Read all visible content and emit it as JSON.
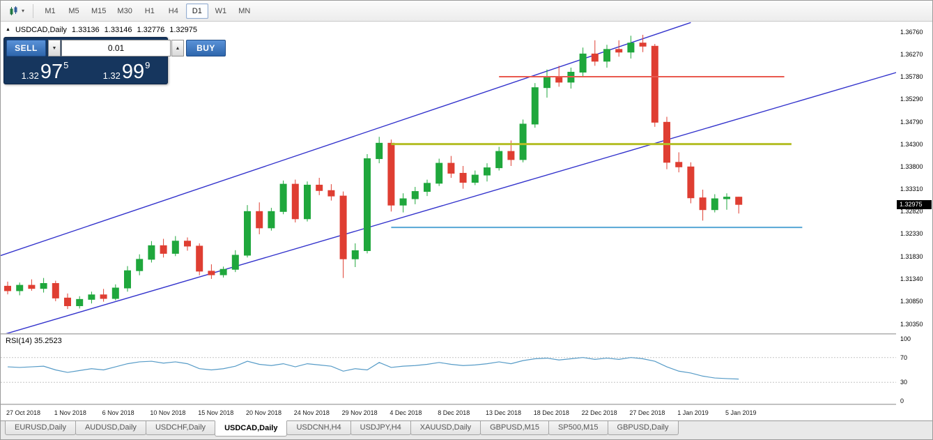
{
  "toolbar": {
    "timeframes": [
      "M1",
      "M5",
      "M15",
      "M30",
      "H1",
      "H4",
      "D1",
      "W1",
      "MN"
    ],
    "active_timeframe": "D1"
  },
  "icons": {
    "caret_down": "▼",
    "caret_up": "▲",
    "dropdown_caret": "▾",
    "symbol_marker": "▲"
  },
  "chart_header": {
    "marker": "▲",
    "symbol": "USDCAD,Daily",
    "open": "1.33136",
    "high": "1.33146",
    "low": "1.32776",
    "close": "1.32975"
  },
  "trade_panel": {
    "sell_label": "SELL",
    "buy_label": "BUY",
    "volume": "0.01",
    "sell_price": {
      "prefix": "1.32",
      "big": "97",
      "sup": "5"
    },
    "buy_price": {
      "prefix": "1.32",
      "big": "99",
      "sup": "9"
    }
  },
  "indicator": {
    "label": "RSI(14) 35.2523",
    "levels": [
      100,
      70,
      30,
      0
    ]
  },
  "price_axis": {
    "labels": [
      "1.36760",
      "1.36270",
      "1.35780",
      "1.35290",
      "1.34790",
      "1.34300",
      "1.33800",
      "1.33310",
      "1.32820",
      "1.32330",
      "1.31830",
      "1.31340",
      "1.30850",
      "1.30350"
    ],
    "current": "1.32975"
  },
  "tabs": [
    {
      "label": "EURUSD,Daily",
      "active": false
    },
    {
      "label": "AUDUSD,Daily",
      "active": false
    },
    {
      "label": "USDCHF,Daily",
      "active": false
    },
    {
      "label": "USDCAD,Daily",
      "active": true
    },
    {
      "label": "USDCNH,H4",
      "active": false
    },
    {
      "label": "USDJPY,H4",
      "active": false
    },
    {
      "label": "XAUUSD,Daily",
      "active": false
    },
    {
      "label": "GBPUSD,M15",
      "active": false
    },
    {
      "label": "SP500,M15",
      "active": false
    },
    {
      "label": "GBPUSD,Daily",
      "active": false
    }
  ],
  "colors": {
    "up": "#1FA73C",
    "down": "#DF3E32",
    "trend": "#3333CC",
    "rsi": "#569BC7",
    "badge_bg": "#000000"
  },
  "chart_data": {
    "type": "candlestick",
    "symbol": "USDCAD",
    "timeframe": "Daily",
    "x_labels": [
      "27 Oct 2018",
      "1 Nov 2018",
      "6 Nov 2018",
      "10 Nov 2018",
      "15 Nov 2018",
      "20 Nov 2018",
      "24 Nov 2018",
      "29 Nov 2018",
      "4 Dec 2018",
      "8 Dec 2018",
      "13 Dec 2018",
      "18 Dec 2018",
      "22 Dec 2018",
      "27 Dec 2018",
      "1 Jan 2019",
      "5 Jan 2019"
    ],
    "x_label_every_n_bars": 4,
    "y_range": {
      "top": 1.3699,
      "bottom": 1.30145
    },
    "candles": [
      [
        1.3118,
        1.3128,
        1.31,
        1.3108
      ],
      [
        1.3108,
        1.3126,
        1.3098,
        1.312
      ],
      [
        1.312,
        1.3133,
        1.3108,
        1.3113
      ],
      [
        1.3113,
        1.3136,
        1.3104,
        1.3124
      ],
      [
        1.3124,
        1.313,
        1.3085,
        1.3092
      ],
      [
        1.3092,
        1.3102,
        1.3068,
        1.3075
      ],
      [
        1.3075,
        1.3096,
        1.3069,
        1.3089
      ],
      [
        1.3089,
        1.3106,
        1.308,
        1.3099
      ],
      [
        1.3099,
        1.3112,
        1.3084,
        1.3091
      ],
      [
        1.3091,
        1.3122,
        1.3087,
        1.3114
      ],
      [
        1.3114,
        1.3162,
        1.3106,
        1.3152
      ],
      [
        1.3152,
        1.3188,
        1.3142,
        1.3177
      ],
      [
        1.3177,
        1.3217,
        1.317,
        1.3207
      ],
      [
        1.3207,
        1.3222,
        1.3181,
        1.319
      ],
      [
        1.319,
        1.3228,
        1.3184,
        1.3217
      ],
      [
        1.3217,
        1.3225,
        1.3196,
        1.3206
      ],
      [
        1.3206,
        1.3212,
        1.3142,
        1.3151
      ],
      [
        1.3151,
        1.3166,
        1.3134,
        1.3143
      ],
      [
        1.3143,
        1.3161,
        1.3137,
        1.3155
      ],
      [
        1.3155,
        1.3197,
        1.3149,
        1.3186
      ],
      [
        1.3186,
        1.3296,
        1.3181,
        1.3282
      ],
      [
        1.3282,
        1.3302,
        1.3232,
        1.3246
      ],
      [
        1.3246,
        1.329,
        1.324,
        1.3282
      ],
      [
        1.3282,
        1.335,
        1.3276,
        1.3342
      ],
      [
        1.3342,
        1.3352,
        1.3258,
        1.3266
      ],
      [
        1.3266,
        1.3348,
        1.326,
        1.334
      ],
      [
        1.334,
        1.3356,
        1.3318,
        1.3328
      ],
      [
        1.3328,
        1.3342,
        1.3306,
        1.3316
      ],
      [
        1.3316,
        1.3326,
        1.3136,
        1.3178
      ],
      [
        1.3178,
        1.3212,
        1.316,
        1.3196
      ],
      [
        1.3196,
        1.3408,
        1.319,
        1.3398
      ],
      [
        1.3398,
        1.3446,
        1.3388,
        1.3432
      ],
      [
        1.3432,
        1.344,
        1.3282,
        1.3296
      ],
      [
        1.3296,
        1.3322,
        1.328,
        1.331
      ],
      [
        1.331,
        1.3336,
        1.3298,
        1.3326
      ],
      [
        1.3326,
        1.3352,
        1.3316,
        1.3344
      ],
      [
        1.3344,
        1.3398,
        1.3338,
        1.3388
      ],
      [
        1.3388,
        1.3404,
        1.3356,
        1.3366
      ],
      [
        1.3366,
        1.3382,
        1.3332,
        1.3346
      ],
      [
        1.3346,
        1.3372,
        1.334,
        1.3362
      ],
      [
        1.3362,
        1.3388,
        1.3348,
        1.3378
      ],
      [
        1.3378,
        1.3424,
        1.3372,
        1.3414
      ],
      [
        1.3414,
        1.3438,
        1.3382,
        1.3396
      ],
      [
        1.3396,
        1.3484,
        1.339,
        1.3474
      ],
      [
        1.3474,
        1.3564,
        1.3466,
        1.3554
      ],
      [
        1.3554,
        1.3594,
        1.3532,
        1.3578
      ],
      [
        1.3578,
        1.3602,
        1.3556,
        1.3566
      ],
      [
        1.3566,
        1.3598,
        1.3552,
        1.3588
      ],
      [
        1.3588,
        1.3642,
        1.3578,
        1.3628
      ],
      [
        1.3628,
        1.3658,
        1.3602,
        1.3612
      ],
      [
        1.3612,
        1.3648,
        1.3598,
        1.3638
      ],
      [
        1.3638,
        1.3658,
        1.3622,
        1.3632
      ],
      [
        1.3632,
        1.3668,
        1.3618,
        1.3652
      ],
      [
        1.3652,
        1.367,
        1.3632,
        1.3645
      ],
      [
        1.3645,
        1.365,
        1.3468,
        1.3478
      ],
      [
        1.3478,
        1.349,
        1.3375,
        1.339
      ],
      [
        1.339,
        1.3412,
        1.3368,
        1.338
      ],
      [
        1.338,
        1.339,
        1.33,
        1.3312
      ],
      [
        1.3312,
        1.333,
        1.3262,
        1.3286
      ],
      [
        1.3286,
        1.332,
        1.328,
        1.331
      ],
      [
        1.331,
        1.3322,
        1.3286,
        1.33136
      ],
      [
        1.33136,
        1.33146,
        1.32776,
        1.32975
      ]
    ],
    "hlines": [
      {
        "price": 1.3578,
        "color": "#E9594F",
        "width": 2,
        "from_bar": 41,
        "to_bar": 64.8
      },
      {
        "price": 1.343,
        "color": "#B4BE26",
        "width": 3,
        "from_bar": 32,
        "to_bar": 65.4
      },
      {
        "price": 1.3247,
        "color": "#56A6D5",
        "width": 2,
        "from_bar": 32,
        "to_bar": 66.3
      }
    ],
    "trendlines": [
      {
        "from": {
          "bar": -0.6,
          "price": 1.3185
        },
        "to": {
          "bar": 57,
          "price": 1.3697
        },
        "color": "#3333CC"
      },
      {
        "from": {
          "bar": -0.6,
          "price": 1.301
        },
        "to": {
          "bar": 74.5,
          "price": 1.359
        },
        "color": "#3333CC"
      }
    ],
    "rsi": {
      "period": 14,
      "current": 35.2523,
      "levels_dashed": [
        70,
        30
      ],
      "values": [
        55,
        54,
        55,
        56,
        50,
        46,
        49,
        52,
        50,
        55,
        60,
        63,
        64,
        61,
        63,
        60,
        52,
        50,
        52,
        56,
        64,
        59,
        57,
        60,
        55,
        60,
        58,
        56,
        48,
        52,
        50,
        62,
        54,
        56,
        57,
        59,
        62,
        59,
        57,
        58,
        60,
        63,
        60,
        65,
        68,
        69,
        66,
        68,
        70,
        67,
        69,
        67,
        70,
        68,
        64,
        55,
        48,
        45,
        40,
        37,
        36,
        35.25
      ]
    }
  }
}
